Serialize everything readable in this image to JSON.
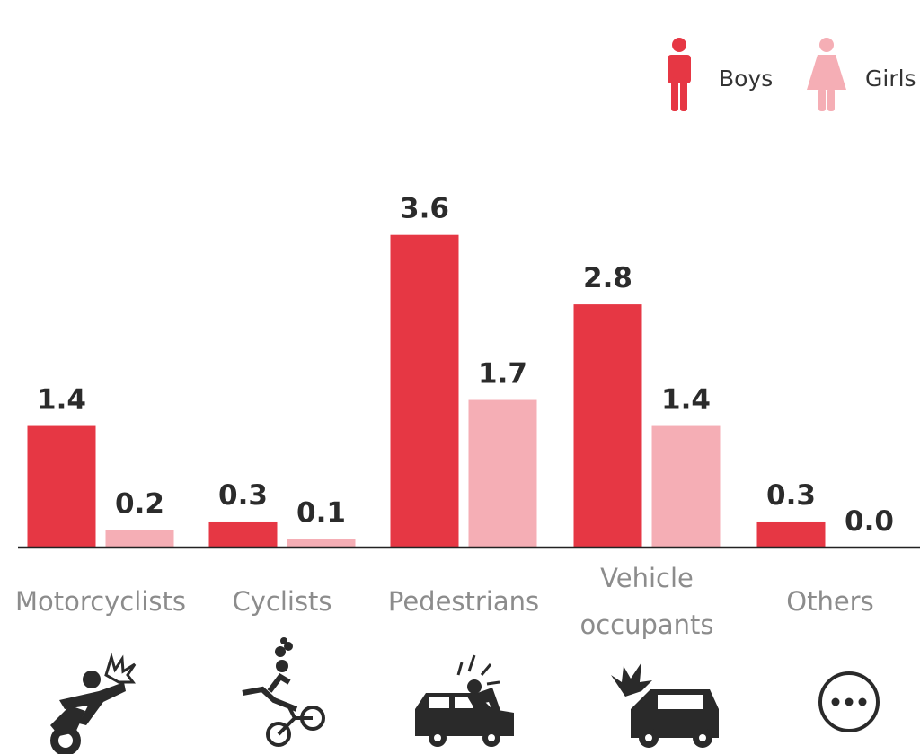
{
  "chart_data": {
    "type": "bar",
    "categories": [
      "Motorcyclists",
      "Cyclists",
      "Pedestrians",
      "Vehicle occupants",
      "Others"
    ],
    "category_lines": [
      [
        "Motorcyclists"
      ],
      [
        "Cyclists"
      ],
      [
        "Pedestrians"
      ],
      [
        "Vehicle",
        "occupants"
      ],
      [
        "Others"
      ]
    ],
    "series": [
      {
        "name": "Boys",
        "values": [
          1.4,
          0.3,
          3.6,
          2.8,
          0.3
        ],
        "labels": [
          "1.4",
          "0.3",
          "3.6",
          "2.8",
          "0.3"
        ],
        "color": "#e63744"
      },
      {
        "name": "Girls",
        "values": [
          0.2,
          0.1,
          1.7,
          1.4,
          0.0
        ],
        "labels": [
          "0.2",
          "0.1",
          "1.7",
          "1.4",
          "0.0"
        ],
        "color": "#f5aeb5"
      }
    ],
    "ylim": [
      0,
      4
    ],
    "legend_position": "top-right",
    "grid": false,
    "category_icons": [
      "motorcycle-crash-icon",
      "bicycle-crash-icon",
      "pedestrian-hit-by-car-icon",
      "car-crash-icon",
      "more-dots-icon"
    ],
    "baseline_color": "#222222",
    "label_color": "#2b2b2b",
    "category_label_color": "#8c8c8c"
  }
}
